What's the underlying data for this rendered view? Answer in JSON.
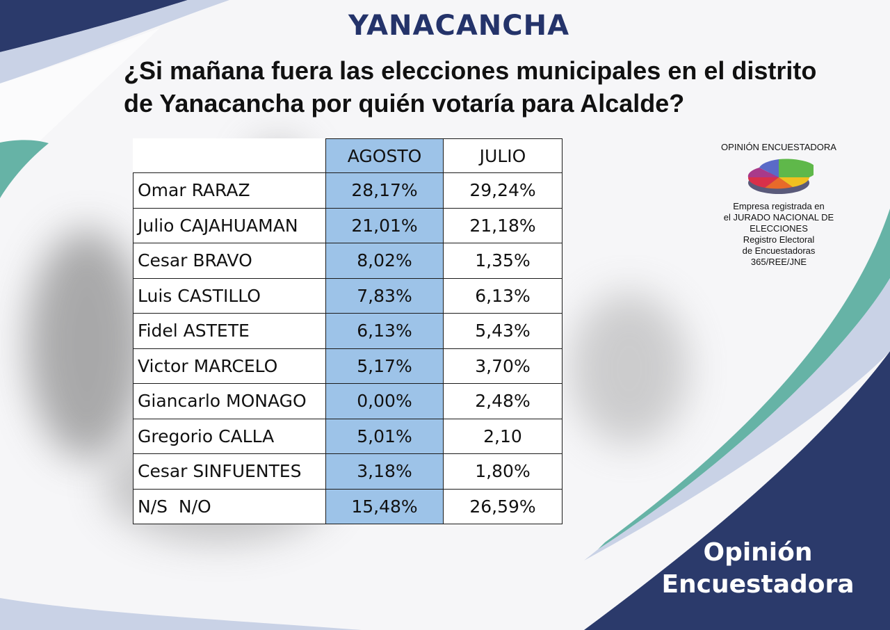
{
  "title": "YANACANCHA",
  "question": "¿Si  mañana fuera las elecciones municipales en el distrito de Yanacancha por quién votaría para Alcalde?",
  "colors": {
    "title": "#24336a",
    "navy": "#2b3a6b",
    "teal": "#66b3a6",
    "agosto_column": "#9dc3e8"
  },
  "table": {
    "headers": {
      "agosto": "AGOSTO",
      "julio": "JULIO"
    },
    "rows": [
      {
        "name": "Omar RARAZ",
        "agosto": "28,17%",
        "julio": "29,24%"
      },
      {
        "name": "Julio CAJAHUAMAN",
        "agosto": "21,01%",
        "julio": "21,18%"
      },
      {
        "name": "Cesar BRAVO",
        "agosto": "8,02%",
        "julio": "1,35%"
      },
      {
        "name": "Luis CASTILLO",
        "agosto": "7,83%",
        "julio": "6,13%"
      },
      {
        "name": "Fidel ASTETE",
        "agosto": "6,13%",
        "julio": "5,43%"
      },
      {
        "name": "Victor MARCELO",
        "agosto": "5,17%",
        "julio": "3,70%"
      },
      {
        "name": "Giancarlo MONAGO",
        "agosto": "0,00%",
        "julio": "2,48%"
      },
      {
        "name": "Gregorio CALLA",
        "agosto": "5,01%",
        "julio": "2,10"
      },
      {
        "name": "Cesar SINFUENTES",
        "agosto": "3,18%",
        "julio": "1,80%"
      },
      {
        "name": "N/S  N/O",
        "agosto": "15,48%",
        "julio": "26,59%"
      }
    ]
  },
  "logo": {
    "name": "OPINIÓN ENCUESTADORA",
    "icon": "pie-chart-logo",
    "info_lines": [
      "Empresa registrada en",
      "el JURADO NACIONAL DE",
      "ELECCIONES",
      "Registro Electoral",
      "de Encuestadoras",
      "365/REE/JNE"
    ]
  },
  "brand": {
    "line1": "Opinión",
    "line2": "Encuestadora"
  }
}
